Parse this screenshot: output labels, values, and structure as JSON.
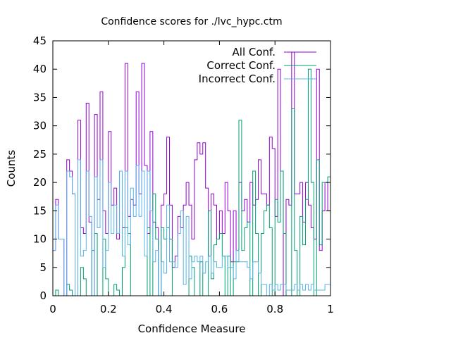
{
  "chart_data": {
    "type": "histogram",
    "title": "Confidence scores for ./lvc_hypc.ctm",
    "xlabel": "Confidence Measure",
    "ylabel": "Counts",
    "xlim": [
      0,
      1
    ],
    "ylim": [
      0,
      45
    ],
    "x_ticks": [
      0,
      0.2,
      0.4,
      0.6,
      0.8,
      1
    ],
    "x_tick_labels": [
      "0",
      "0.2",
      "0.4",
      "0.6",
      "0.8",
      "1"
    ],
    "y_ticks": [
      0,
      5,
      10,
      15,
      20,
      25,
      30,
      35,
      40,
      45
    ],
    "y_tick_labels": [
      "0",
      "5",
      "10",
      "15",
      "20",
      "25",
      "30",
      "35",
      "40",
      "45"
    ],
    "bin_width": 0.01,
    "grid": false,
    "legend_position": "top-right",
    "series": [
      {
        "name": "All Conf.",
        "color": "#9400d3",
        "values": [
          8,
          17,
          10,
          10,
          0,
          24,
          22,
          18,
          0,
          31,
          12,
          11,
          34,
          13,
          0,
          32,
          17,
          36,
          15,
          11,
          29,
          16,
          19,
          10,
          22,
          12,
          41,
          14,
          17,
          16,
          36,
          18,
          41,
          23,
          11,
          29,
          13,
          12,
          0,
          16,
          18,
          28,
          16,
          5,
          7,
          14,
          12,
          16,
          20,
          16,
          10,
          24,
          27,
          25,
          27,
          19,
          7,
          18,
          16,
          10,
          15,
          11,
          20,
          15,
          6,
          15,
          8,
          20,
          15,
          17,
          13,
          20,
          16,
          17,
          24,
          18,
          18,
          16,
          28,
          26,
          14,
          40,
          22,
          0,
          17,
          16,
          43,
          18,
          18,
          20,
          13,
          20,
          16,
          12,
          10,
          40,
          8,
          15,
          20,
          15
        ]
      },
      {
        "name": "Correct Conf.",
        "color": "#009e73",
        "values": [
          0,
          1,
          0,
          0,
          0,
          2,
          1,
          0,
          0,
          0,
          5,
          3,
          0,
          0,
          8,
          11,
          0,
          0,
          10,
          3,
          0,
          0,
          2,
          1,
          0,
          5,
          12,
          11,
          0,
          0,
          0,
          0,
          0,
          0,
          12,
          0,
          18,
          10,
          0,
          12,
          10,
          12,
          10,
          0,
          0,
          0,
          0,
          0,
          0,
          7,
          5,
          0,
          0,
          6,
          0,
          0,
          15,
          3,
          9,
          10,
          11,
          7,
          0,
          7,
          0,
          6,
          6,
          31,
          8,
          12,
          13,
          0,
          22,
          11,
          0,
          11,
          15,
          16,
          12,
          0,
          17,
          13,
          22,
          11,
          0,
          0,
          33,
          8,
          0,
          14,
          9,
          17,
          40,
          20,
          0,
          24,
          9,
          20,
          20,
          21
        ]
      },
      {
        "name": "Incorrect Conf.",
        "color": "#56b4e9",
        "values": [
          8,
          16,
          10,
          10,
          0,
          22,
          21,
          18,
          0,
          24,
          7,
          8,
          22,
          14,
          0,
          21,
          12,
          24,
          5,
          8,
          20,
          11,
          16,
          11,
          22,
          7,
          22,
          9,
          19,
          14,
          23,
          14,
          22,
          7,
          22,
          15,
          6,
          8,
          0,
          6,
          4,
          16,
          6,
          6,
          5,
          11,
          15,
          2,
          14,
          3,
          6,
          7,
          6,
          7,
          4,
          6,
          7,
          4,
          6,
          5,
          5,
          7,
          7,
          5,
          5,
          3,
          8,
          6,
          6,
          6,
          5,
          3,
          6,
          6,
          4,
          2,
          2,
          0,
          2,
          1,
          2,
          1,
          2,
          2,
          1,
          1,
          1,
          2,
          1,
          2,
          1,
          2,
          1,
          2,
          1,
          1,
          1,
          1,
          2,
          2
        ]
      }
    ]
  }
}
